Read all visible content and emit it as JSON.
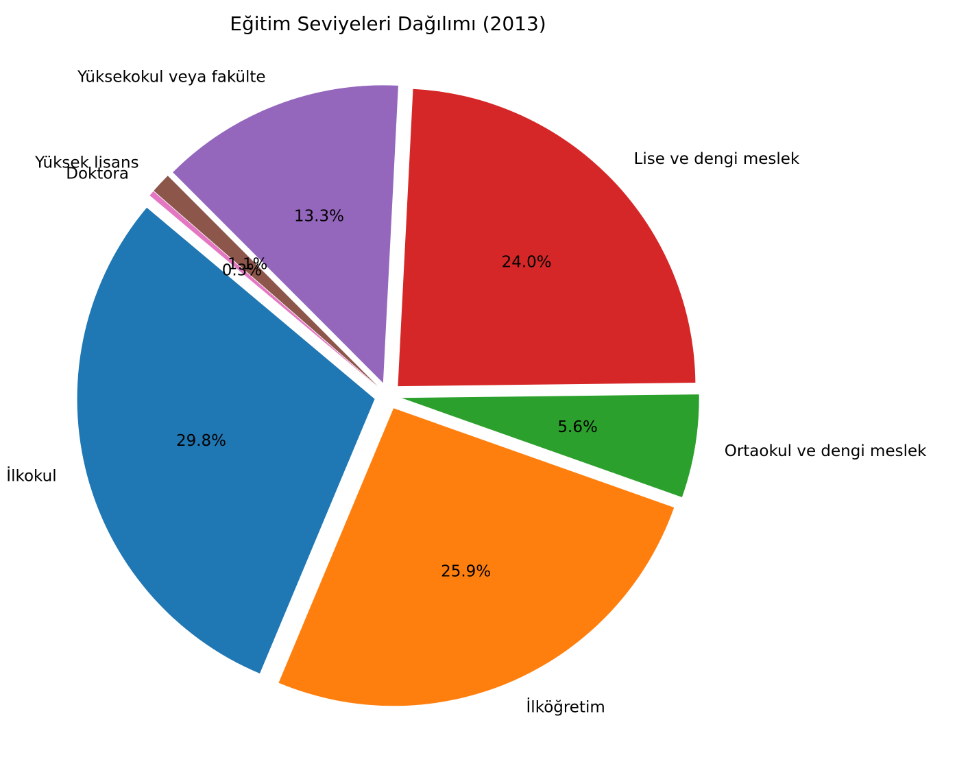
{
  "chart_data": {
    "type": "pie",
    "title": "Eğitim Seviyeleri Dağılımı (2013)",
    "start_angle_deg": 140,
    "direction": "counterclockwise",
    "exploded": true,
    "slices": [
      {
        "label": "İlkokul",
        "value": 29.8,
        "pct_label": "29.8%",
        "color": "#1f77b4"
      },
      {
        "label": "İlköğretim",
        "value": 25.9,
        "pct_label": "25.9%",
        "color": "#ff7f0e"
      },
      {
        "label": "Ortaokul ve dengi meslek",
        "value": 5.6,
        "pct_label": "5.6%",
        "color": "#2ca02c"
      },
      {
        "label": "Lise ve dengi meslek",
        "value": 24.0,
        "pct_label": "24.0%",
        "color": "#d62728"
      },
      {
        "label": "Yüksekokul veya fakülte",
        "value": 13.3,
        "pct_label": "13.3%",
        "color": "#9467bd"
      },
      {
        "label": "Yüksek lisans",
        "value": 1.1,
        "pct_label": "1.1%",
        "color": "#8c564b"
      },
      {
        "label": "Doktora",
        "value": 0.3,
        "pct_label": "0.3%",
        "color": "#e377c2"
      }
    ]
  }
}
